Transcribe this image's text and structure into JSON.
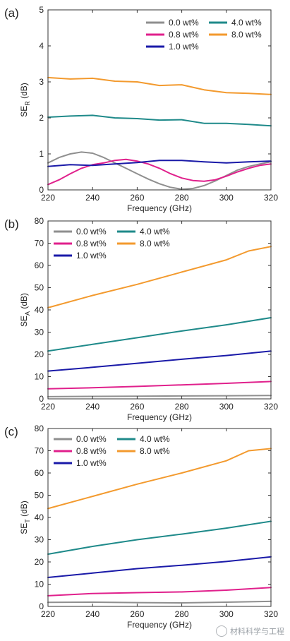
{
  "colors": {
    "gray": "#8f8f8f",
    "magenta": "#e0208c",
    "navy": "#1a1aa8",
    "teal": "#1f8a8a",
    "orange": "#f39a2e"
  },
  "chart_data": [
    {
      "type": "line",
      "panel_label": "(a)",
      "ylabel_main": "SE",
      "ylabel_sub": "R",
      "ylabel_unit": "(dB)",
      "xlabel": "Frequency (GHz)",
      "xlim": [
        220,
        320
      ],
      "ylim": [
        0,
        5
      ],
      "xticks": [
        220,
        240,
        260,
        280,
        300,
        320
      ],
      "yticks": [
        0,
        1,
        2,
        3,
        4,
        5
      ],
      "legend_position": "top-right",
      "series": [
        {
          "name": "0.0 wt%",
          "color": "gray",
          "x": [
            220,
            225,
            230,
            235,
            240,
            245,
            250,
            255,
            260,
            265,
            270,
            275,
            280,
            285,
            290,
            295,
            300,
            305,
            310,
            315,
            320
          ],
          "y": [
            0.75,
            0.9,
            1.0,
            1.05,
            1.02,
            0.9,
            0.75,
            0.6,
            0.45,
            0.3,
            0.17,
            0.07,
            0.02,
            0.04,
            0.12,
            0.25,
            0.4,
            0.55,
            0.65,
            0.72,
            0.78
          ]
        },
        {
          "name": "0.8 wt%",
          "color": "magenta",
          "x": [
            220,
            225,
            230,
            235,
            240,
            245,
            250,
            255,
            260,
            265,
            270,
            275,
            280,
            285,
            290,
            295,
            300,
            305,
            310,
            315,
            320
          ],
          "y": [
            0.15,
            0.28,
            0.45,
            0.6,
            0.7,
            0.75,
            0.82,
            0.85,
            0.8,
            0.72,
            0.6,
            0.45,
            0.33,
            0.26,
            0.24,
            0.28,
            0.38,
            0.5,
            0.6,
            0.68,
            0.72
          ]
        },
        {
          "name": "1.0 wt%",
          "color": "navy",
          "x": [
            220,
            230,
            240,
            250,
            260,
            270,
            280,
            290,
            300,
            310,
            320
          ],
          "y": [
            0.65,
            0.7,
            0.68,
            0.72,
            0.76,
            0.82,
            0.82,
            0.78,
            0.75,
            0.78,
            0.8
          ]
        },
        {
          "name": "4.0 wt%",
          "color": "teal",
          "x": [
            220,
            230,
            240,
            250,
            260,
            270,
            280,
            290,
            300,
            310,
            320
          ],
          "y": [
            2.02,
            2.05,
            2.07,
            2.0,
            1.98,
            1.94,
            1.95,
            1.85,
            1.85,
            1.82,
            1.78
          ]
        },
        {
          "name": "8.0 wt%",
          "color": "orange",
          "x": [
            220,
            230,
            240,
            250,
            260,
            270,
            280,
            290,
            300,
            310,
            320
          ],
          "y": [
            3.12,
            3.08,
            3.1,
            3.02,
            3.0,
            2.9,
            2.92,
            2.78,
            2.7,
            2.68,
            2.65
          ]
        }
      ]
    },
    {
      "type": "line",
      "panel_label": "(b)",
      "ylabel_main": "SE",
      "ylabel_sub": "A",
      "ylabel_unit": "(dB)",
      "xlabel": "Frequency (GHz)",
      "xlim": [
        220,
        320
      ],
      "ylim": [
        0,
        80
      ],
      "xticks": [
        220,
        240,
        260,
        280,
        300,
        320
      ],
      "yticks": [
        0,
        10,
        20,
        30,
        40,
        50,
        60,
        70,
        80
      ],
      "legend_position": "top-left",
      "series": [
        {
          "name": "0.0 wt%",
          "color": "gray",
          "x": [
            220,
            240,
            260,
            280,
            300,
            320
          ],
          "y": [
            1.0,
            1.1,
            1.2,
            1.3,
            1.4,
            1.5
          ]
        },
        {
          "name": "0.8 wt%",
          "color": "magenta",
          "x": [
            220,
            240,
            260,
            280,
            300,
            320
          ],
          "y": [
            4.5,
            5.0,
            5.6,
            6.3,
            7.0,
            7.8
          ]
        },
        {
          "name": "1.0 wt%",
          "color": "navy",
          "x": [
            220,
            240,
            260,
            280,
            300,
            320
          ],
          "y": [
            12.5,
            14.2,
            16.0,
            17.8,
            19.5,
            21.5
          ]
        },
        {
          "name": "4.0 wt%",
          "color": "teal",
          "x": [
            220,
            240,
            260,
            280,
            300,
            320
          ],
          "y": [
            21.5,
            24.5,
            27.5,
            30.5,
            33.3,
            36.5
          ]
        },
        {
          "name": "8.0 wt%",
          "color": "orange",
          "x": [
            220,
            240,
            260,
            280,
            300,
            310,
            320
          ],
          "y": [
            41,
            46.5,
            51.5,
            57,
            62.5,
            66.5,
            68.5
          ]
        }
      ]
    },
    {
      "type": "line",
      "panel_label": "(c)",
      "ylabel_main": "SE",
      "ylabel_sub": "T",
      "ylabel_unit": "(dB)",
      "xlabel": "Frequency (GHz)",
      "xlim": [
        220,
        320
      ],
      "ylim": [
        0,
        80
      ],
      "xticks": [
        220,
        240,
        260,
        280,
        300,
        320
      ],
      "yticks": [
        0,
        10,
        20,
        30,
        40,
        50,
        60,
        70,
        80
      ],
      "legend_position": "top-left",
      "series": [
        {
          "name": "0.0 wt%",
          "color": "gray",
          "x": [
            220,
            240,
            260,
            280,
            300,
            320
          ],
          "y": [
            1.8,
            1.9,
            1.7,
            1.6,
            1.9,
            2.3
          ]
        },
        {
          "name": "0.8 wt%",
          "color": "magenta",
          "x": [
            220,
            240,
            260,
            280,
            300,
            320
          ],
          "y": [
            4.8,
            5.8,
            6.2,
            6.5,
            7.3,
            8.5
          ]
        },
        {
          "name": "1.0 wt%",
          "color": "navy",
          "x": [
            220,
            240,
            260,
            280,
            300,
            320
          ],
          "y": [
            13,
            15,
            17,
            18.5,
            20.2,
            22.3
          ]
        },
        {
          "name": "4.0 wt%",
          "color": "teal",
          "x": [
            220,
            240,
            260,
            280,
            300,
            320
          ],
          "y": [
            23.5,
            27,
            30,
            32.5,
            35.2,
            38.3
          ]
        },
        {
          "name": "8.0 wt%",
          "color": "orange",
          "x": [
            220,
            240,
            260,
            280,
            300,
            310,
            320
          ],
          "y": [
            44,
            49.5,
            55,
            60,
            65.5,
            70,
            71
          ]
        }
      ]
    }
  ],
  "watermark": {
    "text": "材料科学与工程",
    "icon": "wechat-icon"
  }
}
